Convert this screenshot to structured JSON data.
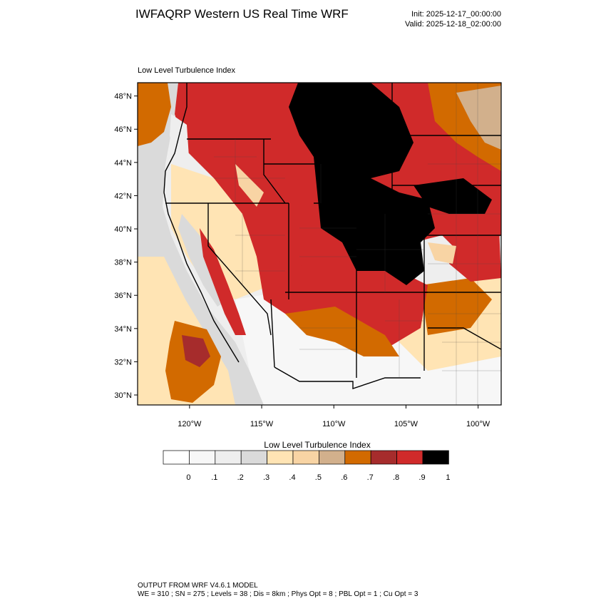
{
  "header": {
    "title": "IWFAQRP Western US Real Time WRF",
    "init": "Init: 2025-12-17_00:00:00",
    "valid": "Valid: 2025-12-18_02:00:00"
  },
  "panel": {
    "title": "Low Level Turbulence Index"
  },
  "axes": {
    "lat_labels": [
      "48°N",
      "46°N",
      "44°N",
      "42°N",
      "40°N",
      "38°N",
      "36°N",
      "34°N",
      "32°N",
      "30°N"
    ],
    "lat_values": [
      48,
      46,
      44,
      42,
      40,
      38,
      36,
      34,
      32,
      30
    ],
    "lon_labels": [
      "120°W",
      "115°W",
      "110°W",
      "105°W",
      "100°W"
    ],
    "lon_values": [
      -120,
      -115,
      -110,
      -105,
      -100
    ],
    "lat_range": [
      29.4,
      48.8
    ],
    "lon_range": [
      -123.6,
      -98.4
    ]
  },
  "legend": {
    "title": "Low Level Turbulence Index",
    "colors": [
      "#ffffff",
      "#f7f7f7",
      "#eeeeee",
      "#dadada",
      "#ffe4b4",
      "#f8d4a4",
      "#d2b08c",
      "#d26a00",
      "#a62c2c",
      "#d02a2a",
      "#000000"
    ],
    "labels": [
      "0",
      ".1",
      ".2",
      ".3",
      ".4",
      ".5",
      ".6",
      ".7",
      ".8",
      ".9",
      "1"
    ]
  },
  "footer": {
    "line1": "OUTPUT FROM WRF V4.6.1 MODEL",
    "line2": "WE = 310 ; SN = 275 ; Levels = 38 ; Dis = 8km ; Phys Opt = 8 ; PBL Opt = 1 ; Cu Opt = 3"
  }
}
